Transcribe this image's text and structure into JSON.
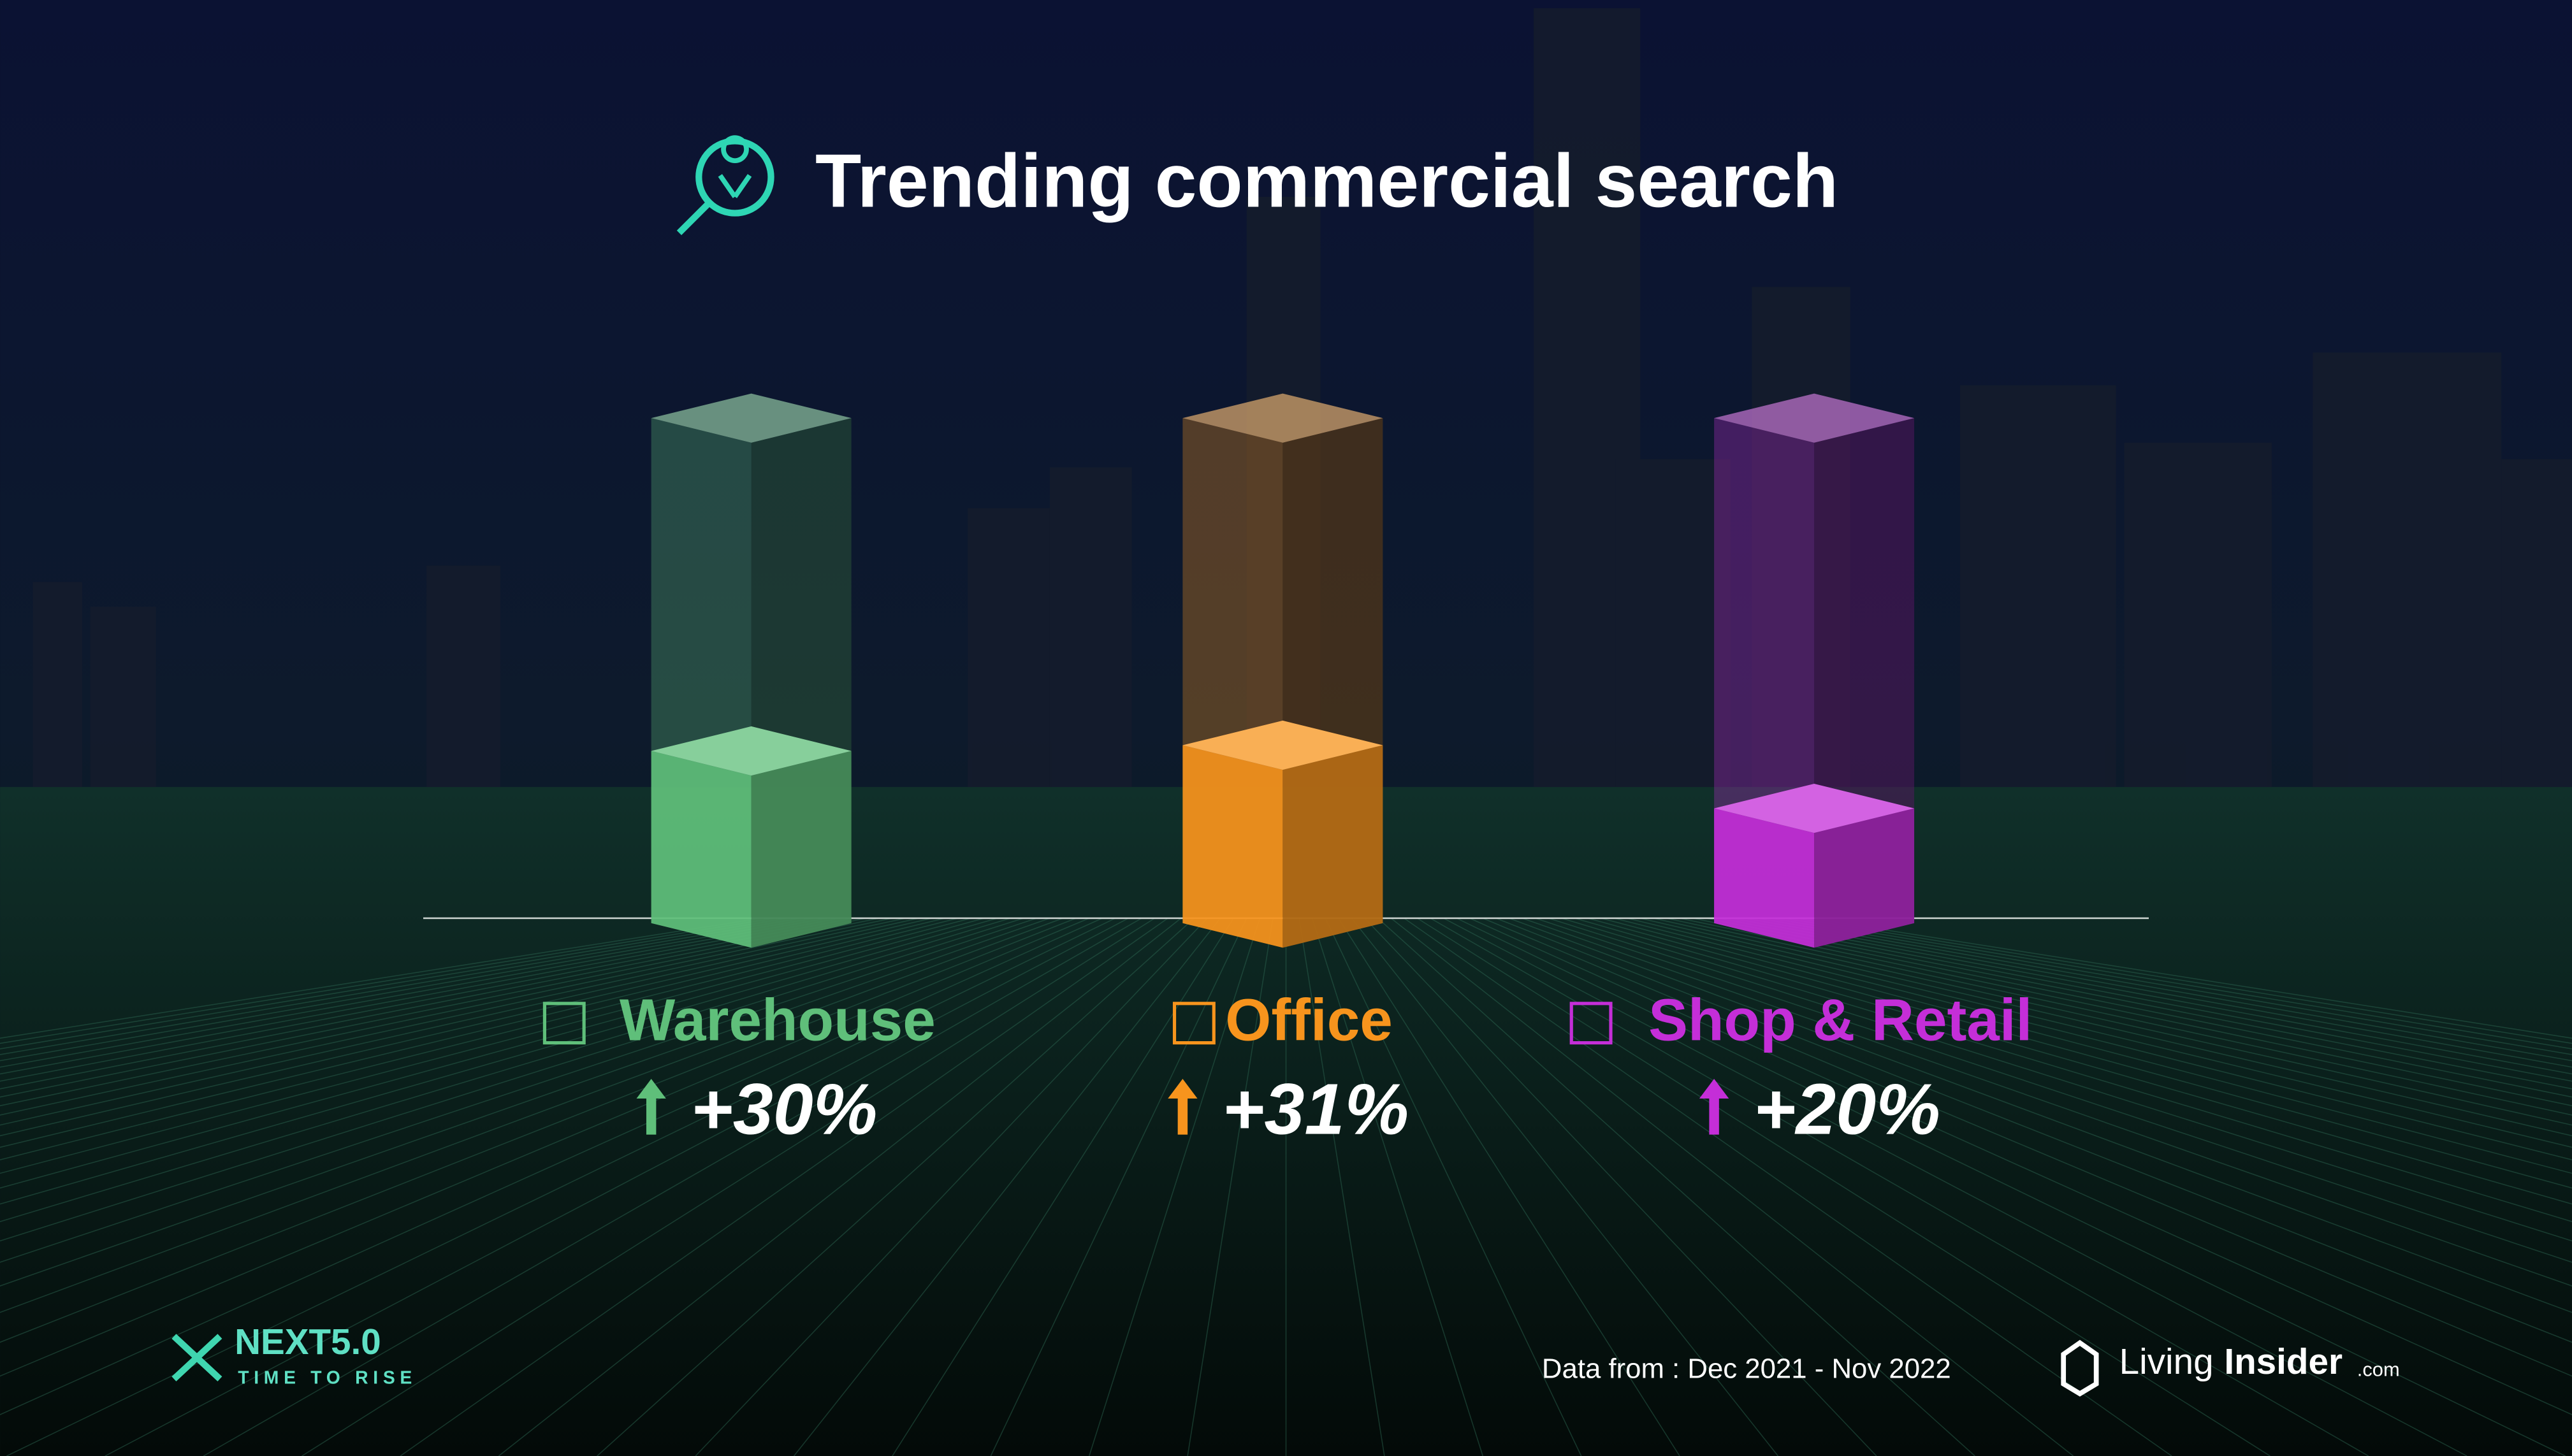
{
  "chart_data": {
    "type": "bar",
    "title": "Trending commercial search",
    "categories": [
      "Warehouse",
      "Office",
      "Shop & Retail"
    ],
    "values": [
      30,
      31,
      20
    ],
    "value_labels": [
      "+30%",
      "+31%",
      "+20%"
    ],
    "colors": [
      "#5fbf7a",
      "#f7941d",
      "#c42ed8"
    ]
  },
  "footer": {
    "note": "Data from : Dec 2021 - Nov 2022"
  },
  "branding": {
    "event": "NEXT5.0",
    "tagline": "TIME TO RISE",
    "logo_main": "Living",
    "logo_bold": "Insider",
    "logo_suffix": ".com"
  }
}
